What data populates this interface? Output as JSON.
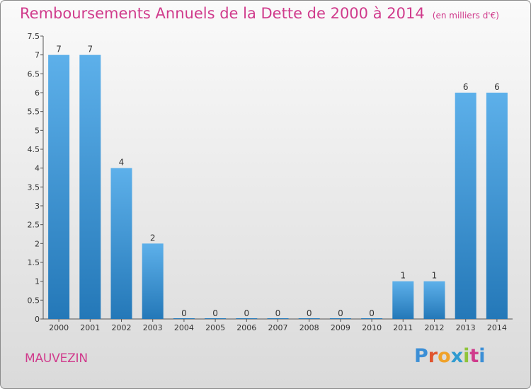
{
  "header": {
    "title": "Remboursements Annuels de la Dette de 2000 à 2014",
    "unit": "(en milliers d'€)"
  },
  "footer": {
    "town": "MAUVEZIN",
    "logo_letters": [
      "P",
      "r",
      "o",
      "x",
      "i",
      "t",
      "i"
    ],
    "logo_colors": [
      "#3c8fd6",
      "#e0542e",
      "#f0a22a",
      "#2f9bd0",
      "#8fc43a",
      "#d03b8c",
      "#3c8fd6"
    ]
  },
  "colors": {
    "title": "#d03b8c",
    "bar_light": "#5db0ea",
    "bar_dark": "#2478b8"
  },
  "chart_data": {
    "type": "bar",
    "categories": [
      "2000",
      "2001",
      "2002",
      "2003",
      "2004",
      "2005",
      "2006",
      "2007",
      "2008",
      "2009",
      "2010",
      "2011",
      "2012",
      "2013",
      "2014"
    ],
    "values": [
      7,
      7,
      4,
      2,
      0,
      0,
      0,
      0,
      0,
      0,
      0,
      1,
      1,
      6,
      6
    ],
    "data_labels": [
      "7",
      "7",
      "4",
      "2",
      "0",
      "0",
      "0",
      "0",
      "0",
      "0",
      "0",
      "1",
      "1",
      "6",
      "6"
    ],
    "yticks": [
      "0",
      "0.5",
      "1",
      "1.5",
      "2",
      "2.5",
      "3",
      "3.5",
      "4",
      "4.5",
      "5",
      "5.5",
      "6",
      "6.5",
      "7",
      "7.5"
    ],
    "ylim": [
      0,
      7.5
    ],
    "grid": false,
    "legend": "none"
  }
}
